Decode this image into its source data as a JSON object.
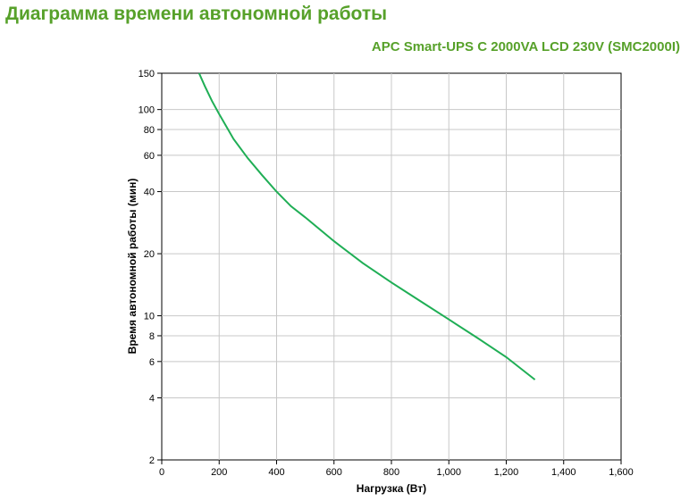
{
  "title": "Диаграмма времени автономной работы",
  "subtitle": "APC Smart-UPS C 2000VA LCD 230V (SMC2000I)",
  "colors": {
    "accent": "#57a12a",
    "curve": "#1fae55",
    "grid": "#c8c8c8"
  },
  "chart_data": {
    "type": "line",
    "xlabel": "Нагрузка (Вт)",
    "ylabel": "Время автономной работы (мин)",
    "xlim": [
      0,
      1600
    ],
    "ylim": [
      2,
      150
    ],
    "yscale": "log",
    "grid": true,
    "x_ticks": [
      "0",
      "200",
      "400",
      "600",
      "800",
      "1,000",
      "1,200",
      "1,400",
      "1,600"
    ],
    "x_tick_values": [
      0,
      200,
      400,
      600,
      800,
      1000,
      1200,
      1400,
      1600
    ],
    "y_ticks": [
      "2",
      "4",
      "6",
      "8",
      "10",
      "20",
      "40",
      "60",
      "80",
      "100",
      "150"
    ],
    "y_tick_values": [
      2,
      4,
      6,
      8,
      10,
      20,
      40,
      60,
      80,
      100,
      150
    ],
    "series": [
      {
        "x": [
          130,
          150,
          175,
          200,
          250,
          300,
          350,
          400,
          450,
          500,
          600,
          700,
          800,
          900,
          1000,
          1100,
          1200,
          1300
        ],
        "values": [
          150,
          130,
          110,
          95,
          72,
          58,
          48,
          40,
          34,
          30,
          23,
          18,
          14.5,
          11.8,
          9.6,
          7.8,
          6.3,
          4.9
        ]
      }
    ]
  }
}
